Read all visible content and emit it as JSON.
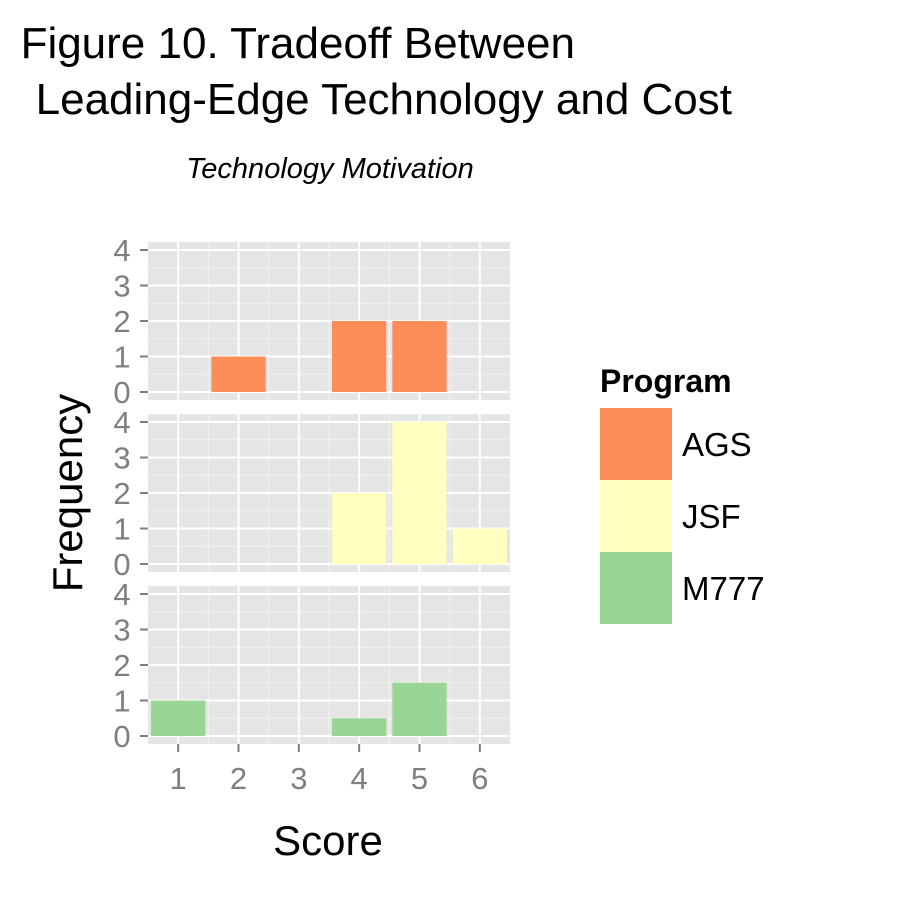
{
  "chart_data": {
    "type": "bar",
    "title_lines": [
      "Figure 10.  Tradeoff Between",
      "Leading-Edge Technology and Cost"
    ],
    "subtitle": "Technology Motivation",
    "xlabel": "Score",
    "ylabel": "Frequency",
    "x_ticks": [
      1,
      2,
      3,
      4,
      5,
      6
    ],
    "xlim": [
      0.5,
      6.5
    ],
    "y_ticks": [
      0,
      1,
      2,
      3,
      4
    ],
    "ylim": [
      0,
      4
    ],
    "grid": true,
    "legend": {
      "title": "Program",
      "placement": "right"
    },
    "series": [
      {
        "name": "AGS",
        "color": "#fc8d59",
        "points": [
          {
            "x": 2,
            "y": 1
          },
          {
            "x": 4,
            "y": 2
          },
          {
            "x": 5,
            "y": 2
          }
        ]
      },
      {
        "name": "JSF",
        "color": "#ffffbf",
        "points": [
          {
            "x": 4,
            "y": 2
          },
          {
            "x": 5,
            "y": 4
          },
          {
            "x": 6,
            "y": 1
          }
        ]
      },
      {
        "name": "M777",
        "color": "#99d594",
        "points": [
          {
            "x": 1,
            "y": 1
          },
          {
            "x": 4,
            "y": 0.5
          },
          {
            "x": 5,
            "y": 1.5
          }
        ]
      }
    ]
  }
}
